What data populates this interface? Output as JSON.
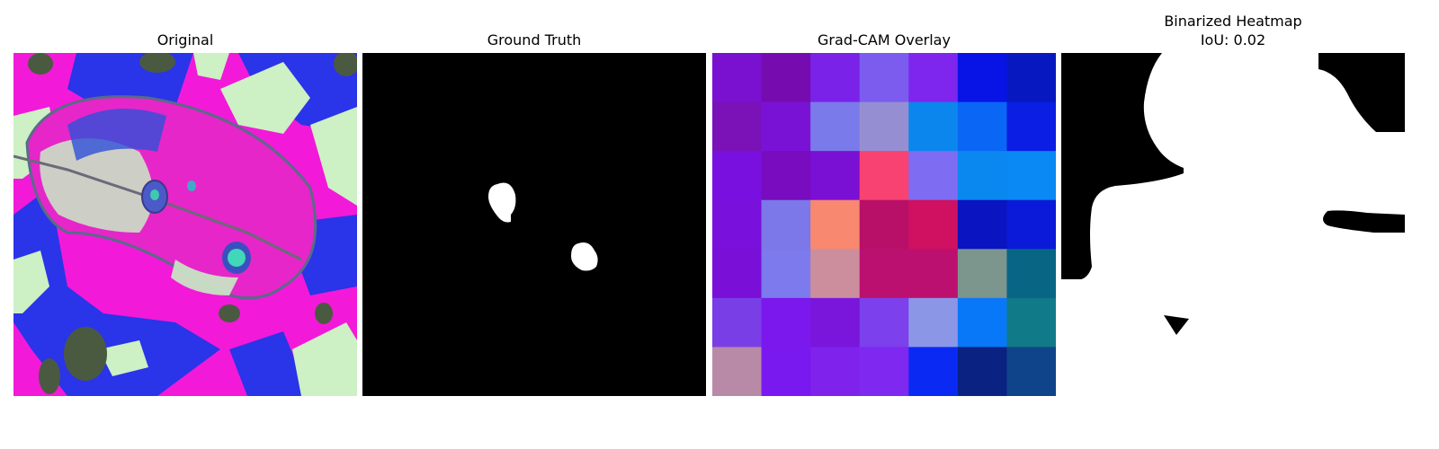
{
  "panels": [
    {
      "title": "Original"
    },
    {
      "title": "Ground Truth"
    },
    {
      "title": "Grad-CAM Overlay"
    },
    {
      "title": "Binarized Heatmap\nIoU: 0.02"
    }
  ],
  "gradcam_grid": [
    [
      "#7a10d0",
      "#760cb0",
      "#7a22e8",
      "#7b5cee",
      "#7e26ee",
      "#0814e6",
      "#0818c0"
    ],
    [
      "#7a12b8",
      "#7a12d6",
      "#7a7aea",
      "#968ed2",
      "#0a86ec",
      "#0a66f4",
      "#0a1ee4"
    ],
    [
      "#7a10e0",
      "#780cbe",
      "#7a10d4",
      "#f84272",
      "#7e6cf2",
      "#0a88f0",
      "#0a88f4"
    ],
    [
      "#7a10dc",
      "#7c78ea",
      "#f88870",
      "#b81068",
      "#d01060",
      "#0a14c0",
      "#0a1ad8"
    ],
    [
      "#7a10d8",
      "#7c7aec",
      "#cc8e9c",
      "#bc1070",
      "#bc1070",
      "#7c968e",
      "#086684"
    ],
    [
      "#7a3ee6",
      "#7a18ee",
      "#7a16dc",
      "#7c40ec",
      "#8c96e6",
      "#0878f8",
      "#107a88"
    ],
    [
      "#b88aa8",
      "#7a18f0",
      "#7e22ec",
      "#7e28f0",
      "#0a2af4",
      "#0a2282",
      "#10448a"
    ]
  ]
}
